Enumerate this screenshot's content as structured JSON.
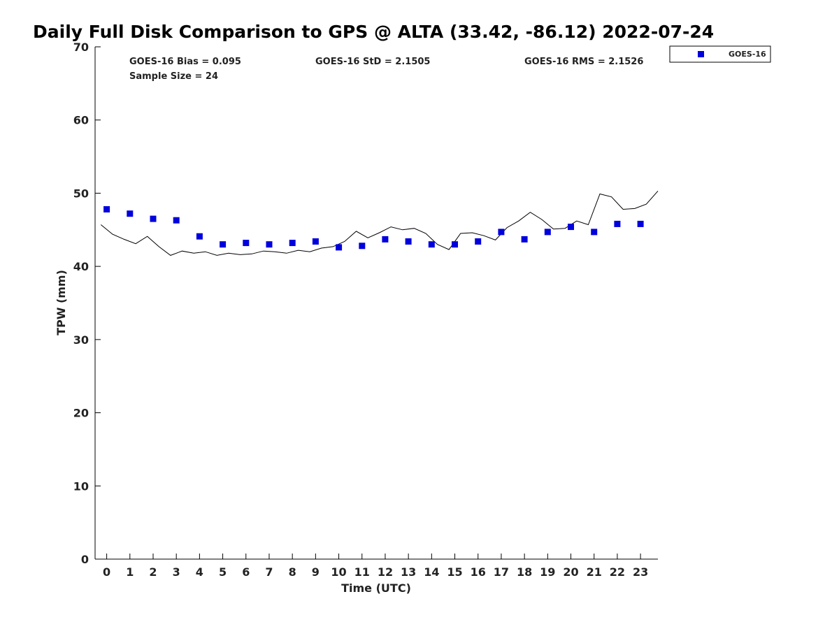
{
  "chart_data": {
    "type": "scatter",
    "title": "Daily Full Disk Comparison to GPS @ ALTA (33.42, -86.12) 2022-07-24",
    "xlabel": "Time (UTC)",
    "ylabel": "TPW (mm)",
    "xlim": [
      -0.5,
      23.75
    ],
    "ylim": [
      0,
      70
    ],
    "x_ticks": [
      0,
      1,
      2,
      3,
      4,
      5,
      6,
      7,
      8,
      9,
      10,
      11,
      12,
      13,
      14,
      15,
      16,
      17,
      18,
      19,
      20,
      21,
      22,
      23
    ],
    "y_ticks": [
      0,
      10,
      20,
      30,
      40,
      50,
      60,
      70
    ],
    "grid": false,
    "legend_position": "top-right (outside plot)",
    "stats": {
      "bias": "GOES-16 Bias = 0.095",
      "sample_size": "Sample Size = 24",
      "std": "GOES-16 StD = 2.1505",
      "rms": "GOES-16 RMS = 2.1526"
    },
    "series": [
      {
        "name": "GOES-16",
        "kind": "scatter",
        "marker": "square",
        "color": "#0000dd",
        "x": [
          0,
          1,
          2,
          3,
          4,
          5,
          6,
          7,
          8,
          9,
          10,
          11,
          12,
          13,
          14,
          15,
          16,
          17,
          18,
          19,
          20,
          21,
          22,
          23
        ],
        "y": [
          47.8,
          47.2,
          46.5,
          46.3,
          44.1,
          43.0,
          43.2,
          43.0,
          43.2,
          43.4,
          42.6,
          42.8,
          43.7,
          43.4,
          43.0,
          43.0,
          43.4,
          44.7,
          43.7,
          44.7,
          45.4,
          44.7,
          45.8,
          45.8
        ]
      },
      {
        "kind": "line",
        "color": "#000000",
        "x": [
          -0.25,
          0.25,
          0.75,
          1.25,
          1.75,
          2.25,
          2.75,
          3.25,
          3.75,
          4.25,
          4.75,
          5.25,
          5.75,
          6.25,
          6.75,
          7.25,
          7.75,
          8.25,
          8.75,
          9.25,
          9.75,
          10.25,
          10.75,
          11.25,
          11.75,
          12.25,
          12.75,
          13.25,
          13.75,
          14.25,
          14.75,
          15.25,
          15.75,
          16.25,
          16.75,
          17.25,
          17.75,
          18.25,
          18.75,
          19.25,
          19.75,
          20.25,
          20.75,
          21.25,
          21.75,
          22.25,
          22.75,
          23.25,
          23.75
        ],
        "y": [
          45.7,
          44.4,
          43.7,
          43.1,
          44.1,
          42.7,
          41.5,
          42.1,
          41.8,
          42.0,
          41.5,
          41.8,
          41.6,
          41.7,
          42.1,
          42.0,
          41.8,
          42.2,
          42.0,
          42.5,
          42.7,
          43.4,
          44.8,
          43.9,
          44.6,
          45.4,
          45.0,
          45.2,
          44.5,
          43.0,
          42.3,
          44.5,
          44.6,
          44.2,
          43.6,
          45.3,
          46.2,
          47.4,
          46.4,
          45.1,
          45.2,
          46.2,
          45.7,
          49.9,
          49.5,
          47.8,
          47.9,
          48.5,
          50.3
        ]
      }
    ]
  }
}
